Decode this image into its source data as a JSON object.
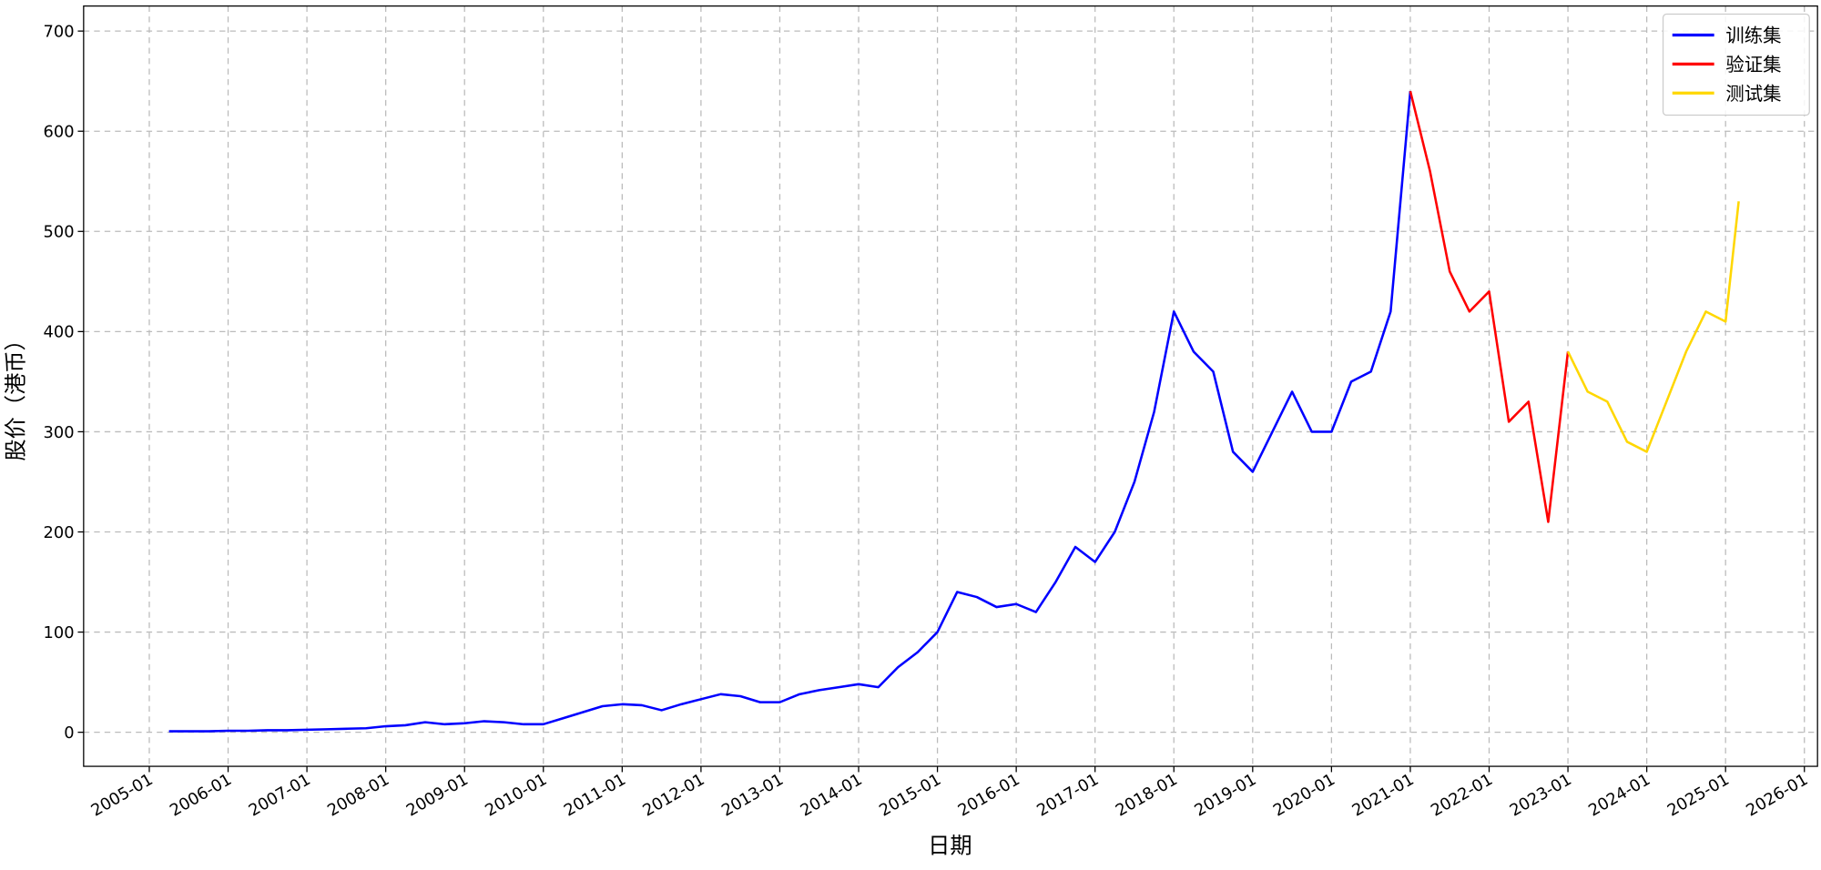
{
  "chart_data": {
    "type": "line",
    "x_label": "日期",
    "y_label": "股价（港币）",
    "x": [
      "2005-04",
      "2005-07",
      "2005-10",
      "2006-01",
      "2006-04",
      "2006-07",
      "2006-10",
      "2007-01",
      "2007-04",
      "2007-07",
      "2007-10",
      "2008-01",
      "2008-04",
      "2008-07",
      "2008-10",
      "2009-01",
      "2009-04",
      "2009-07",
      "2009-10",
      "2010-01",
      "2010-04",
      "2010-07",
      "2010-10",
      "2011-01",
      "2011-04",
      "2011-07",
      "2011-10",
      "2012-01",
      "2012-04",
      "2012-07",
      "2012-10",
      "2013-01",
      "2013-04",
      "2013-07",
      "2013-10",
      "2014-01",
      "2014-04",
      "2014-07",
      "2014-10",
      "2015-01",
      "2015-04",
      "2015-07",
      "2015-10",
      "2016-01",
      "2016-04",
      "2016-07",
      "2016-10",
      "2017-01",
      "2017-04",
      "2017-07",
      "2017-10",
      "2018-01",
      "2018-04",
      "2018-07",
      "2018-10",
      "2019-01",
      "2019-04",
      "2019-07",
      "2019-10",
      "2020-01",
      "2020-04",
      "2020-07",
      "2020-10",
      "2021-01",
      "2021-04",
      "2021-07",
      "2021-10",
      "2022-01",
      "2022-04",
      "2022-07",
      "2022-10",
      "2023-01",
      "2023-04",
      "2023-07",
      "2023-10",
      "2024-01",
      "2024-04",
      "2024-07",
      "2024-10",
      "2025-01",
      "2025-03"
    ],
    "series": [
      {
        "name": "训练集",
        "color": "#0000ff",
        "values": [
          1,
          1,
          1,
          1.5,
          1.5,
          2,
          2,
          2.5,
          3,
          3.5,
          4,
          6,
          7,
          10,
          8,
          9,
          11,
          10,
          8,
          8,
          14,
          20,
          26,
          28,
          27,
          22,
          28,
          33,
          38,
          36,
          30,
          30,
          38,
          42,
          45,
          48,
          45,
          65,
          80,
          100,
          140,
          135,
          125,
          128,
          120,
          150,
          185,
          170,
          200,
          250,
          320,
          420,
          380,
          360,
          280,
          260,
          300,
          340,
          300,
          300,
          350,
          360,
          420,
          640,
          null,
          null,
          null,
          null,
          null,
          null,
          null,
          null,
          null,
          null,
          null,
          null,
          null,
          null,
          null,
          null,
          null
        ]
      },
      {
        "name": "验证集",
        "color": "#ff0000",
        "values": [
          null,
          null,
          null,
          null,
          null,
          null,
          null,
          null,
          null,
          null,
          null,
          null,
          null,
          null,
          null,
          null,
          null,
          null,
          null,
          null,
          null,
          null,
          null,
          null,
          null,
          null,
          null,
          null,
          null,
          null,
          null,
          null,
          null,
          null,
          null,
          null,
          null,
          null,
          null,
          null,
          null,
          null,
          null,
          null,
          null,
          null,
          null,
          null,
          null,
          null,
          null,
          null,
          null,
          null,
          null,
          null,
          null,
          null,
          null,
          null,
          null,
          null,
          null,
          640,
          560,
          460,
          420,
          440,
          310,
          330,
          210,
          380,
          null,
          null,
          null,
          null,
          null,
          null,
          null,
          null,
          null
        ]
      },
      {
        "name": "测试集",
        "color": "#ffd700",
        "values": [
          null,
          null,
          null,
          null,
          null,
          null,
          null,
          null,
          null,
          null,
          null,
          null,
          null,
          null,
          null,
          null,
          null,
          null,
          null,
          null,
          null,
          null,
          null,
          null,
          null,
          null,
          null,
          null,
          null,
          null,
          null,
          null,
          null,
          null,
          null,
          null,
          null,
          null,
          null,
          null,
          null,
          null,
          null,
          null,
          null,
          null,
          null,
          null,
          null,
          null,
          null,
          null,
          null,
          null,
          null,
          null,
          null,
          null,
          null,
          null,
          null,
          null,
          null,
          null,
          null,
          null,
          null,
          null,
          null,
          null,
          null,
          380,
          340,
          330,
          290,
          280,
          330,
          380,
          420,
          410,
          530
        ]
      }
    ],
    "xlim": [
      "2004-03",
      "2026-03"
    ],
    "xticks": [
      "2005-01",
      "2006-01",
      "2007-01",
      "2008-01",
      "2009-01",
      "2010-01",
      "2011-01",
      "2012-01",
      "2013-01",
      "2014-01",
      "2015-01",
      "2016-01",
      "2017-01",
      "2018-01",
      "2019-01",
      "2020-01",
      "2021-01",
      "2022-01",
      "2023-01",
      "2024-01",
      "2025-01",
      "2026-01"
    ],
    "ylim": [
      -34,
      725
    ],
    "yticks": [
      0,
      100,
      200,
      300,
      400,
      500,
      600,
      700
    ],
    "grid": true,
    "legend": "upper right"
  }
}
